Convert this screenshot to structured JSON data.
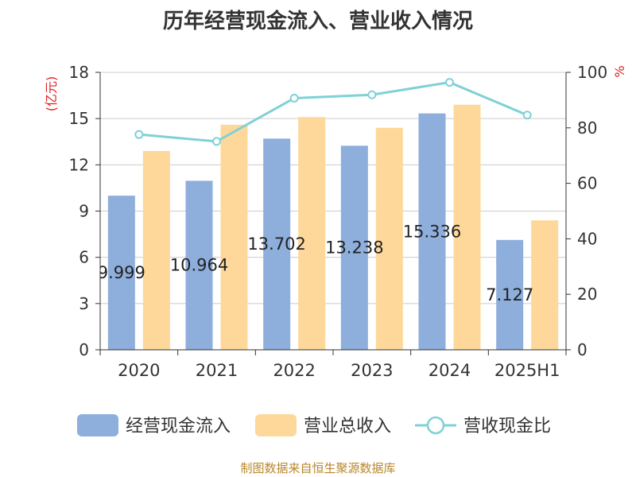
{
  "chart_data": {
    "type": "bar",
    "title": "历年经营现金流入、营业收入情况",
    "categories": [
      "2020",
      "2021",
      "2022",
      "2023",
      "2024",
      "2025H1"
    ],
    "series": [
      {
        "name": "经营现金流入",
        "type": "bar",
        "axis": "left",
        "color": "#8eaedb",
        "values": [
          9.999,
          10.964,
          13.702,
          13.238,
          15.336,
          7.127
        ]
      },
      {
        "name": "营业总收入",
        "type": "bar",
        "axis": "left",
        "color": "#fdd89a",
        "values": [
          12.9,
          14.6,
          15.1,
          14.4,
          15.9,
          8.4
        ]
      },
      {
        "name": "营收现金比",
        "type": "line",
        "axis": "right",
        "color": "#7fd1d6",
        "values": [
          77.6,
          75.1,
          90.7,
          91.9,
          96.4,
          84.6
        ]
      }
    ],
    "data_labels": [
      "9.999",
      "10.964",
      "13.702",
      "13.238",
      "15.336",
      "7.127"
    ],
    "y_left": {
      "label": "(亿元)",
      "ticks": [
        "0",
        "3",
        "6",
        "9",
        "12",
        "15",
        "18"
      ],
      "ylim": [
        0,
        18
      ]
    },
    "y_right": {
      "label": "%",
      "ticks": [
        "0",
        "20",
        "40",
        "60",
        "80",
        "100"
      ],
      "ylim": [
        0,
        100
      ]
    },
    "grid": true,
    "legend_position": "bottom",
    "unit_color": "#e02020"
  },
  "source": "制图数据来自恒生聚源数据库"
}
